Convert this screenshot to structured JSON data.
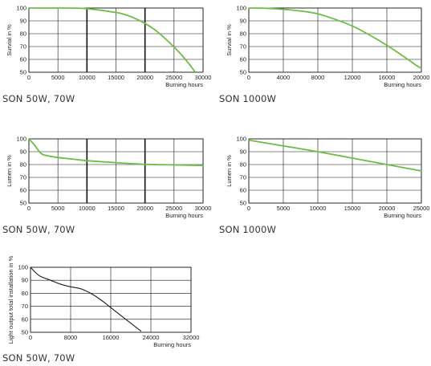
{
  "chart_data": [
    {
      "id": "p1",
      "type": "line",
      "caption": "SON 50W, 70W",
      "xlabel": "Burning hours",
      "ylabel": "Survial in %",
      "xlim": [
        0,
        30000
      ],
      "ylim": [
        50,
        100
      ],
      "x_ticks": [
        "0",
        "5000",
        "10000",
        "15000",
        "20000",
        "25000",
        "30000"
      ],
      "y_ticks": [
        "50",
        "60",
        "70",
        "80",
        "90",
        "100"
      ],
      "heavy_gridlines_x": [
        10000,
        20000
      ],
      "series": [
        {
          "color": "#6cbd45",
          "points": [
            [
              0,
              100
            ],
            [
              5000,
              100
            ],
            [
              8000,
              99.9
            ],
            [
              10000,
              99.5
            ],
            [
              12000,
              98.5
            ],
            [
              14000,
              97.2
            ],
            [
              16000,
              95.6
            ],
            [
              18000,
              92.5
            ],
            [
              20000,
              88
            ],
            [
              22000,
              82
            ],
            [
              24000,
              74
            ],
            [
              26000,
              65
            ],
            [
              27500,
              57
            ],
            [
              28500,
              51
            ]
          ]
        }
      ]
    },
    {
      "id": "p2",
      "type": "line",
      "caption": "SON 1000W",
      "xlabel": "Burning hours",
      "ylabel": "Survial in %",
      "xlim": [
        0,
        20000
      ],
      "ylim": [
        50,
        100
      ],
      "x_ticks": [
        "0",
        "4000",
        "8000",
        "12000",
        "16000",
        "20000"
      ],
      "y_ticks": [
        "50",
        "60",
        "70",
        "80",
        "90",
        "100"
      ],
      "heavy_gridlines_x": [],
      "series": [
        {
          "color": "#6cbd45",
          "points": [
            [
              0,
              100
            ],
            [
              2000,
              99.8
            ],
            [
              4000,
              99
            ],
            [
              6000,
              97.7
            ],
            [
              8000,
              95.5
            ],
            [
              10000,
              91.2
            ],
            [
              12000,
              86
            ],
            [
              14000,
              79
            ],
            [
              16000,
              71
            ],
            [
              18000,
              62
            ],
            [
              19500,
              55
            ],
            [
              20000,
              53
            ]
          ]
        }
      ]
    },
    {
      "id": "p3",
      "type": "line",
      "caption": "SON 50W, 70W",
      "xlabel": "Burning hours",
      "ylabel": "Lumen in %",
      "xlim": [
        0,
        30000
      ],
      "ylim": [
        50,
        100
      ],
      "x_ticks": [
        "0",
        "5000",
        "10000",
        "15000",
        "20000",
        "25000",
        "30000"
      ],
      "y_ticks": [
        "50",
        "60",
        "70",
        "80",
        "90",
        "100"
      ],
      "heavy_gridlines_x": [
        10000,
        20000
      ],
      "series": [
        {
          "color": "#6cbd45",
          "points": [
            [
              0,
              100
            ],
            [
              1000,
              95
            ],
            [
              2000,
              89
            ],
            [
              3000,
              87
            ],
            [
              5000,
              85.5
            ],
            [
              8000,
              84
            ],
            [
              10000,
              83
            ],
            [
              15000,
              81.5
            ],
            [
              20000,
              80.2
            ],
            [
              25000,
              79.7
            ],
            [
              30000,
              79.2
            ]
          ]
        }
      ]
    },
    {
      "id": "p4",
      "type": "line",
      "caption": "SON 1000W",
      "xlabel": "Burning hours",
      "ylabel": "Lumen in %",
      "xlim": [
        0,
        25000
      ],
      "ylim": [
        50,
        100
      ],
      "x_ticks": [
        "0",
        "5000",
        "10000",
        "15000",
        "20000",
        "25000"
      ],
      "y_ticks": [
        "50",
        "60",
        "70",
        "80",
        "90",
        "100"
      ],
      "heavy_gridlines_x": [],
      "series": [
        {
          "color": "#6cbd45",
          "points": [
            [
              0,
              99
            ],
            [
              5000,
              94.5
            ],
            [
              10000,
              90
            ],
            [
              15000,
              85
            ],
            [
              20000,
              80
            ],
            [
              25000,
              75
            ]
          ]
        }
      ]
    },
    {
      "id": "p5",
      "type": "line",
      "caption": "SON 50W, 70W",
      "xlabel": "Burning hours",
      "ylabel": "Light output total installation in %",
      "xlim": [
        0,
        32000
      ],
      "ylim": [
        50,
        100
      ],
      "x_ticks": [
        "0",
        "8000",
        "16000",
        "24000",
        "32000"
      ],
      "y_ticks": [
        "50",
        "60",
        "70",
        "80",
        "90",
        "100"
      ],
      "heavy_gridlines_x": [],
      "series": [
        {
          "color": "#1a1a1a",
          "points": [
            [
              0,
              100
            ],
            [
              1000,
              96
            ],
            [
              2000,
              93
            ],
            [
              4000,
              90
            ],
            [
              6000,
              87
            ],
            [
              8000,
              85
            ],
            [
              10000,
              83.5
            ],
            [
              12000,
              80
            ],
            [
              14000,
              75
            ],
            [
              16000,
              69
            ],
            [
              18000,
              63
            ],
            [
              20000,
              57
            ],
            [
              22000,
              51
            ]
          ]
        }
      ]
    }
  ]
}
